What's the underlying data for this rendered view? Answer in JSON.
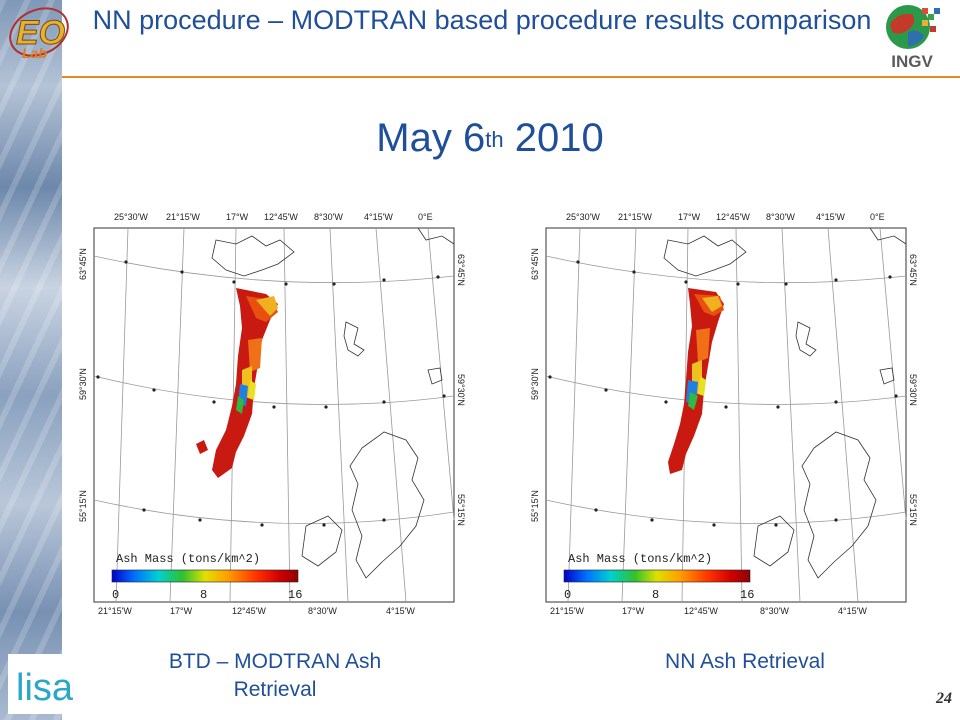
{
  "header": {
    "title": "NN procedure – MODTRAN based procedure results comparison",
    "logo_left_text": "EO Lab",
    "logo_right_text": "INGV"
  },
  "date": {
    "main": "May 6",
    "superscript": "th",
    "year": "2010"
  },
  "maps": {
    "top_lon_labels": [
      "25°30'W",
      "21°15'W",
      "17°W",
      "12°45'W",
      "8°30'W",
      "4°15'W",
      "0°E"
    ],
    "bottom_lon_labels": [
      "21°15'W",
      "17°W",
      "12°45'W",
      "8°30'W",
      "4°15'W"
    ],
    "lat_labels": [
      "63°45'N",
      "59°30'N",
      "55°15'N"
    ],
    "legend_title": "Ash Mass (tons/km^2)",
    "legend_ticks": [
      "0",
      "8",
      "16"
    ]
  },
  "captions": {
    "left_line1": "BTD – MODTRAN Ash",
    "left_line2": "Retrieval",
    "right": "NN Ash Retrieval"
  },
  "footer": {
    "logo_text": "lisa",
    "page_number": "24"
  },
  "colors": {
    "title": "#1f4f9a",
    "rule": "#e08a2a",
    "logo_teal": "#29a7c9"
  }
}
